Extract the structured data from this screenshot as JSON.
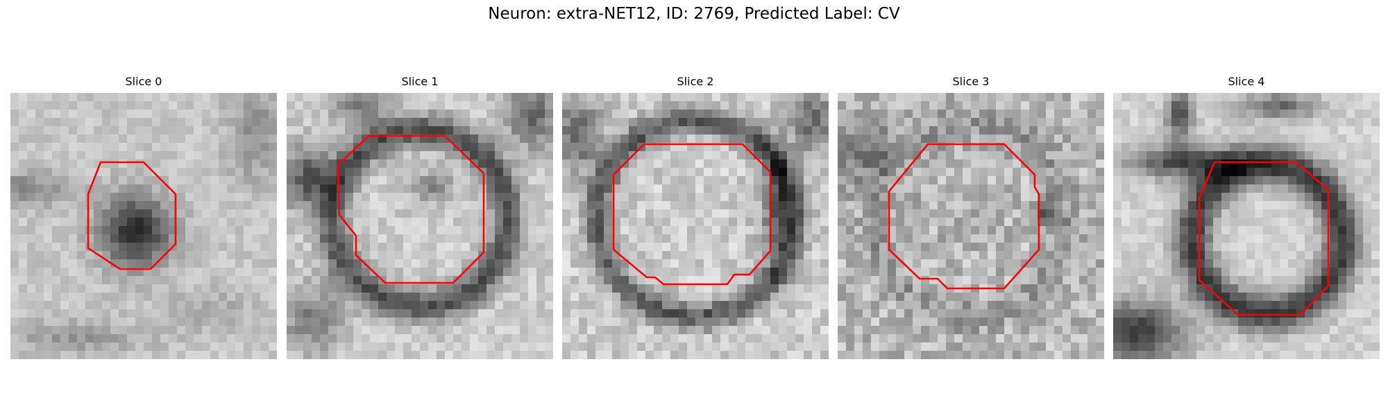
{
  "figure": {
    "title": "Neuron: extra-NET12, ID: 2769, Predicted Label: CV",
    "contour_color": "#ff0000"
  },
  "panels": [
    {
      "title": "Slice 0"
    },
    {
      "title": "Slice 1"
    },
    {
      "title": "Slice 2"
    },
    {
      "title": "Slice 3"
    },
    {
      "title": "Slice 4"
    }
  ]
}
